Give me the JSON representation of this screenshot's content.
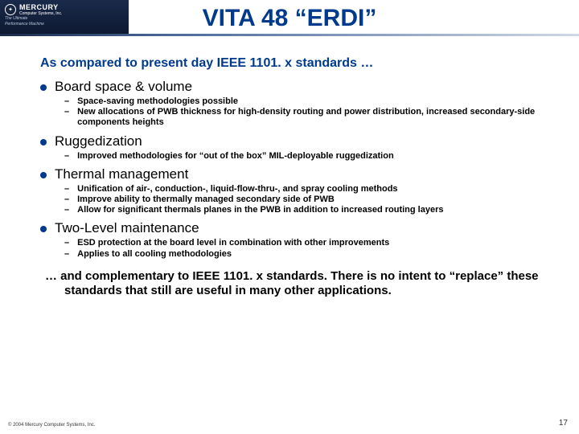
{
  "header": {
    "brand": "MERCURY",
    "brand_sub": "Computer Systems, Inc.",
    "tagline1": "The Ultimate",
    "tagline2": "Performance Machine"
  },
  "title": "VITA 48 “ERDI”",
  "subtitle": "As compared to present day IEEE 1101. x standards …",
  "sections": [
    {
      "heading": "Board space & volume",
      "items": [
        "Space-saving methodologies possible",
        "New allocations of PWB thickness for high-density routing and power distribution, increased secondary-side components heights"
      ]
    },
    {
      "heading": "Ruggedization",
      "items": [
        "Improved methodologies for “out of the box” MIL-deployable ruggedization"
      ]
    },
    {
      "heading": "Thermal management",
      "items": [
        "Unification of air-, conduction-, liquid-flow-thru-, and spray cooling methods",
        "Improve ability to thermally managed secondary side of PWB",
        "Allow for significant thermals planes in the PWB in addition to increased routing layers"
      ]
    },
    {
      "heading": "Two-Level maintenance",
      "items": [
        "ESD protection at the board level in combination with other improvements",
        "Applies to all cooling methodologies"
      ]
    }
  ],
  "closing": "… and complementary to IEEE 1101. x standards. There is no intent to “replace” these standards that still are useful in many other applications.",
  "footer": {
    "copyright": "© 2004 Mercury Computer Systems, Inc.",
    "page": "17"
  },
  "style": {
    "title_color": "#003a8c",
    "bullet_color": "#003a8c",
    "bg": "#ffffff",
    "title_fontsize": 30,
    "subtitle_fontsize": 16,
    "main_fontsize": 17,
    "sub_fontsize": 11,
    "closing_fontsize": 15
  }
}
